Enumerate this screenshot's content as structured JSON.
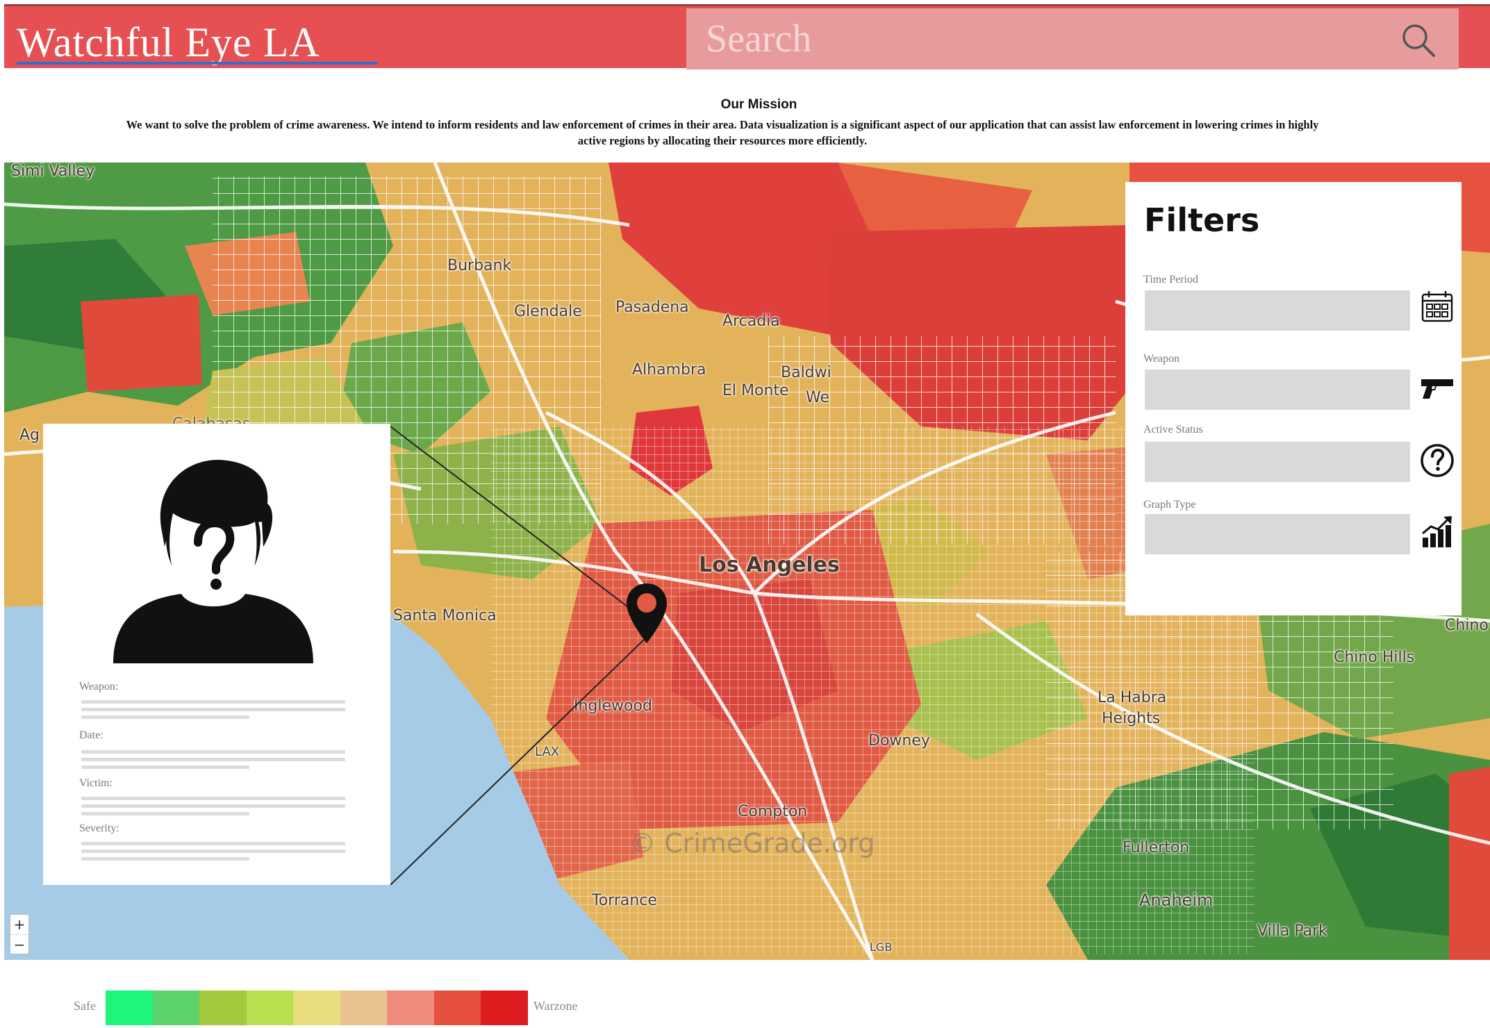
{
  "header": {
    "brand": "Watchful Eye LA",
    "search_placeholder": "Search"
  },
  "mission": {
    "title": "Our Mission",
    "text": "We want to solve the problem of crime awareness. We intend to inform residents and law enforcement of crimes in their area. Data visualization is a significant aspect of our application that can assist law enforcement in lowering crimes in highly active regions by allocating their resources more efficiently."
  },
  "map": {
    "cities": {
      "simi_valley": "Simi Valley",
      "burbank": "Burbank",
      "glendale": "Glendale",
      "pasadena": "Pasadena",
      "arcadia": "Arcadia",
      "alhambra": "Alhambra",
      "el_monte": "El Monte",
      "baldwin": "Baldwi",
      "west": "We",
      "los_angeles": "Los Angeles",
      "santa_monica": "Santa Monica",
      "inglewood": "Inglewood",
      "lax": "LAX",
      "downey": "Downey",
      "la_habra": "La Habra",
      "heights": "Heights",
      "compton": "Compton",
      "fullerton": "Fullerton",
      "torrance": "Torrance",
      "anaheim": "Anaheim",
      "villa_park": "Villa Park",
      "chino": "Chino",
      "chino_hills": "Chino Hills",
      "agoura": "Ag",
      "calabasas": "Calabasas",
      "lgb": "LGB"
    },
    "watermark": "© CrimeGrade.org",
    "zoom_in": "+",
    "zoom_out": "−"
  },
  "detail_card": {
    "avatar_icon": "unknown-person-icon",
    "fields": {
      "weapon": "Weapon:",
      "date": "Date:",
      "victim": "Victim:",
      "severity": "Severity:"
    }
  },
  "filters": {
    "title": "Filters",
    "time_period": {
      "label": "Time Period",
      "icon": "calendar-icon"
    },
    "weapon": {
      "label": "Weapon",
      "icon": "gun-icon"
    },
    "active_status": {
      "label": "Active Status",
      "icon": "question-circle-icon"
    },
    "graph_type": {
      "label": "Graph Type",
      "icon": "bar-chart-icon"
    }
  },
  "legend": {
    "safe_label": "Safe",
    "warzone_label": "Warzone",
    "colors": [
      "#1ef57a",
      "#5ed36c",
      "#a3ca3c",
      "#b6e04f",
      "#e7dd7e",
      "#e9c28f",
      "#ee8b7a",
      "#e6503f",
      "#dd1c1f"
    ]
  },
  "colors": {
    "header_bg": "#e65053",
    "search_bg": "#e89b9c",
    "brand_underline": "#2e6fd4",
    "ocean": "#a6cbe7"
  }
}
